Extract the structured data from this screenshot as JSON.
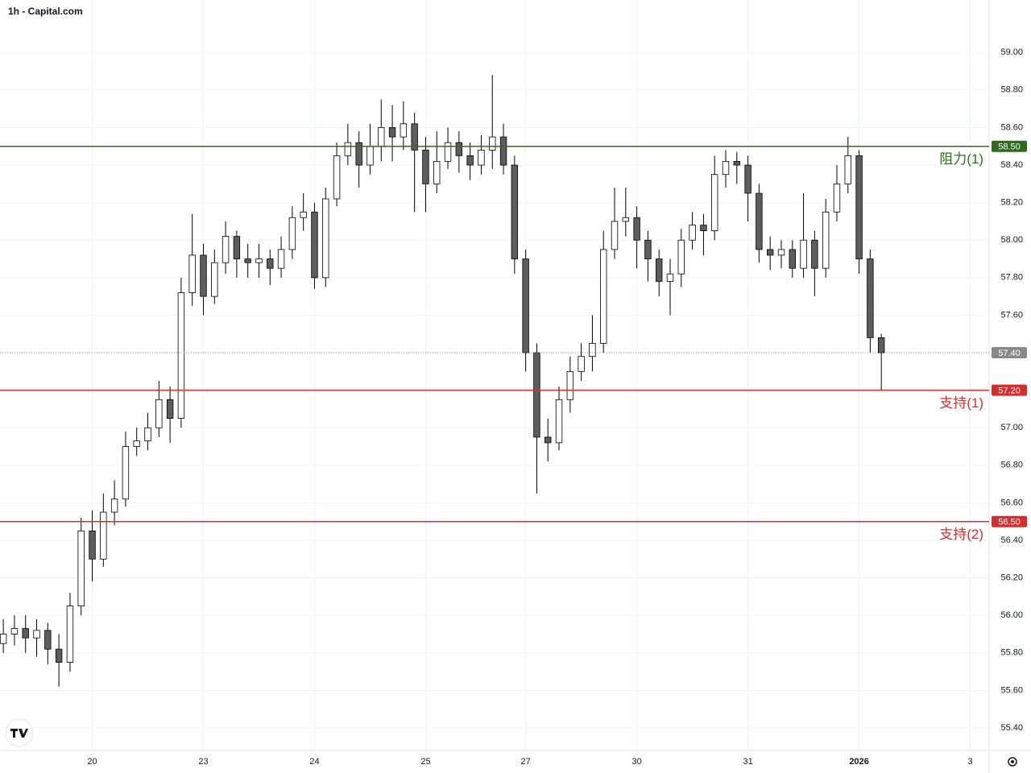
{
  "chart_data": {
    "type": "candlestick",
    "title": "1h - Capital.com",
    "x": [
      0,
      1,
      2,
      3,
      4,
      5,
      6,
      7,
      8,
      9,
      10,
      11,
      12,
      13,
      14,
      15,
      16,
      17,
      18,
      19,
      20,
      21,
      22,
      23,
      24,
      25,
      26,
      27,
      28,
      29,
      30,
      31,
      32,
      33,
      34,
      35,
      36,
      37,
      38,
      39,
      40,
      41,
      42,
      43,
      44,
      45,
      46,
      47,
      48,
      49,
      50,
      51,
      52,
      53,
      54,
      55,
      56,
      57,
      58,
      59,
      60,
      61,
      62,
      63,
      64,
      65,
      66,
      67,
      68,
      69,
      70,
      71,
      72,
      73,
      74,
      75,
      76,
      77,
      78,
      79
    ],
    "open": [
      55.85,
      55.9,
      55.93,
      55.88,
      55.92,
      55.82,
      55.75,
      56.05,
      56.45,
      56.3,
      56.55,
      56.62,
      56.9,
      56.93,
      57.0,
      57.15,
      57.05,
      57.72,
      57.92,
      57.7,
      57.88,
      58.02,
      57.9,
      57.88,
      57.9,
      57.85,
      57.95,
      58.12,
      58.15,
      57.8,
      58.22,
      58.45,
      58.52,
      58.4,
      58.5,
      58.6,
      58.55,
      58.62,
      58.48,
      58.3,
      58.42,
      58.52,
      58.45,
      58.4,
      58.48,
      58.55,
      58.4,
      57.9,
      57.4,
      56.95,
      56.92,
      57.15,
      57.3,
      57.38,
      57.45,
      57.95,
      58.1,
      58.12,
      58.0,
      57.9,
      57.78,
      57.82,
      58.0,
      58.08,
      58.05,
      58.35,
      58.42,
      58.4,
      58.25,
      57.95,
      57.92,
      57.95,
      57.85,
      58.0,
      57.85,
      58.15,
      58.3,
      58.45,
      57.9,
      57.48
    ],
    "high": [
      55.98,
      56.0,
      56.0,
      55.98,
      55.96,
      55.9,
      56.12,
      56.52,
      56.56,
      56.65,
      56.72,
      56.98,
      57.0,
      57.08,
      57.25,
      57.22,
      57.8,
      58.14,
      57.98,
      57.95,
      58.1,
      58.05,
      57.98,
      57.98,
      57.95,
      58.02,
      58.18,
      58.25,
      58.2,
      58.28,
      58.52,
      58.62,
      58.58,
      58.62,
      58.75,
      58.72,
      58.74,
      58.68,
      58.55,
      58.58,
      58.6,
      58.58,
      58.52,
      58.56,
      58.88,
      58.62,
      58.45,
      57.95,
      57.45,
      57.05,
      57.22,
      57.38,
      57.45,
      57.6,
      58.05,
      58.28,
      58.28,
      58.18,
      58.05,
      57.95,
      57.9,
      58.06,
      58.15,
      58.14,
      58.45,
      58.48,
      58.47,
      58.45,
      58.3,
      58.02,
      58.0,
      58.0,
      58.25,
      58.05,
      58.22,
      58.4,
      58.55,
      58.48,
      57.95,
      57.5
    ],
    "low": [
      55.8,
      55.84,
      55.8,
      55.78,
      55.74,
      55.62,
      55.7,
      56.0,
      56.18,
      56.26,
      56.48,
      56.58,
      56.85,
      56.88,
      56.95,
      56.92,
      57.0,
      57.65,
      57.6,
      57.66,
      57.82,
      57.8,
      57.8,
      57.8,
      57.76,
      57.8,
      57.9,
      58.05,
      57.74,
      57.75,
      58.18,
      58.4,
      58.28,
      58.35,
      58.42,
      58.42,
      58.48,
      58.15,
      58.15,
      58.25,
      58.38,
      58.36,
      58.32,
      58.35,
      58.38,
      58.35,
      57.82,
      57.3,
      56.65,
      56.82,
      56.88,
      57.08,
      57.25,
      57.3,
      57.4,
      57.9,
      58.02,
      57.85,
      57.78,
      57.7,
      57.6,
      57.75,
      57.95,
      57.92,
      58.0,
      58.28,
      58.3,
      58.1,
      57.88,
      57.84,
      57.85,
      57.8,
      57.8,
      57.7,
      57.8,
      58.1,
      58.25,
      57.82,
      57.4,
      57.2
    ],
    "close": [
      55.9,
      55.93,
      55.88,
      55.92,
      55.82,
      55.75,
      56.05,
      56.45,
      56.3,
      56.55,
      56.62,
      56.9,
      56.93,
      57.0,
      57.15,
      57.05,
      57.72,
      57.92,
      57.7,
      57.88,
      58.02,
      57.9,
      57.88,
      57.9,
      57.85,
      57.95,
      58.12,
      58.15,
      57.8,
      58.22,
      58.45,
      58.52,
      58.4,
      58.5,
      58.6,
      58.55,
      58.62,
      58.48,
      58.3,
      58.42,
      58.52,
      58.45,
      58.4,
      58.48,
      58.55,
      58.4,
      57.9,
      57.4,
      56.95,
      56.92,
      57.15,
      57.3,
      57.38,
      57.45,
      57.95,
      58.1,
      58.12,
      58.0,
      57.9,
      57.78,
      57.82,
      58.0,
      58.08,
      58.05,
      58.35,
      58.42,
      58.4,
      58.25,
      57.95,
      57.92,
      57.95,
      57.85,
      58.0,
      57.85,
      58.15,
      58.3,
      58.45,
      57.9,
      57.48,
      57.4
    ],
    "up_color": "#ffffff",
    "down_color": "#5d5d5d",
    "wick_color": "#000000",
    "xlim": [
      -0.3,
      88.7
    ],
    "xticks": [
      {
        "value": 8,
        "label": "20"
      },
      {
        "value": 18,
        "label": "23"
      },
      {
        "value": 28,
        "label": "24"
      },
      {
        "value": 38,
        "label": "25"
      },
      {
        "value": 47,
        "label": "27"
      },
      {
        "value": 57,
        "label": "30"
      },
      {
        "value": 67,
        "label": "31"
      },
      {
        "value": 77,
        "label": "2026"
      },
      {
        "value": 87,
        "label": "3"
      }
    ],
    "ylim": [
      55.28,
      59.28
    ],
    "yticks": [
      {
        "value": 55.4,
        "label": "55.40"
      },
      {
        "value": 55.6,
        "label": "55.60"
      },
      {
        "value": 55.8,
        "label": "55.80"
      },
      {
        "value": 56,
        "label": "56.00"
      },
      {
        "value": 56.2,
        "label": "56.20"
      },
      {
        "value": 56.4,
        "label": "56.40"
      },
      {
        "value": 56.6,
        "label": "56.60"
      },
      {
        "value": 56.8,
        "label": "56.80"
      },
      {
        "value": 57,
        "label": "57.00"
      },
      {
        "value": 57.2,
        "label": "57.20"
      },
      {
        "value": 57.4,
        "label": "57.40"
      },
      {
        "value": 57.6,
        "label": "57.60"
      },
      {
        "value": 57.8,
        "label": "57.80"
      },
      {
        "value": 58,
        "label": "58.00"
      },
      {
        "value": 58.2,
        "label": "58.20"
      },
      {
        "value": 58.4,
        "label": "58.40"
      },
      {
        "value": 58.6,
        "label": "58.60"
      },
      {
        "value": 58.8,
        "label": "58.80"
      },
      {
        "value": 59,
        "label": "59.00"
      }
    ],
    "grid": true,
    "levels": [
      {
        "name": "阻力(1)",
        "value": 58.5,
        "label": "58.50",
        "color": "#2e6b1f"
      },
      {
        "name": "支持(1)",
        "value": 57.2,
        "label": "57.20",
        "color": "#d32f2f"
      },
      {
        "name": "支持(2)",
        "value": 56.5,
        "label": "56.50",
        "color": "#d32f2f"
      }
    ],
    "last_price": {
      "value": 57.4,
      "label": "57.40",
      "color": "#888888"
    }
  }
}
